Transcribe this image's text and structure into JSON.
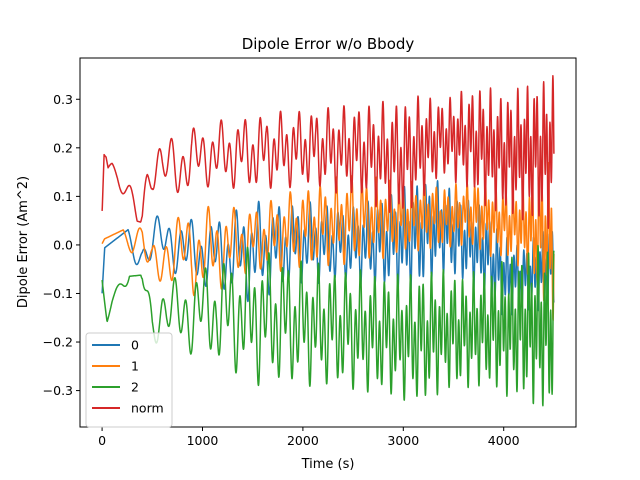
{
  "chart_data": {
    "type": "line",
    "title": "Dipole Error w/o Bbody",
    "xlabel": "Time (s)",
    "ylabel": "Dipole Error (Am^2)",
    "xlim": [
      -220,
      4720
    ],
    "ylim": [
      -0.375,
      0.385
    ],
    "xticks": [
      0,
      1000,
      2000,
      3000,
      4000
    ],
    "xtick_labels": [
      "0",
      "1000",
      "2000",
      "3000",
      "4000"
    ],
    "yticks": [
      -0.3,
      -0.2,
      -0.1,
      0.0,
      0.1,
      0.2,
      0.3
    ],
    "ytick_labels": [
      "−0.3",
      "−0.2",
      "−0.1",
      "0.0",
      "0.1",
      "0.2",
      "0.3"
    ],
    "grid": false,
    "legend_position": "lower left",
    "series": [
      {
        "name": "0",
        "color": "#1f77b4",
        "x": [
          0,
          50,
          100,
          150,
          200,
          300,
          400,
          600,
          800,
          1000,
          1200,
          1500,
          2000,
          2500,
          3000,
          3200,
          3500,
          3800,
          4000,
          4200,
          4500
        ],
        "y": [
          -0.1,
          0.07,
          0.08,
          0.07,
          0.05,
          0.02,
          -0.03,
          0.05,
          0.08,
          -0.05,
          0.05,
          -0.08,
          0.05,
          -0.05,
          0.06,
          0.13,
          -0.05,
          -0.1,
          -0.13,
          -0.12,
          -0.1
        ],
        "envelope": {
          "x": [
            0,
            500,
            1000,
            1500,
            2000,
            2500,
            3000,
            3200,
            3400,
            3600,
            3800,
            4000,
            4200,
            4500
          ],
          "upper": [
            -0.01,
            0.07,
            0.05,
            0.09,
            0.09,
            0.08,
            0.12,
            0.14,
            0.13,
            0.1,
            0.08,
            0.02,
            0.0,
            0.05
          ],
          "lower": [
            -0.1,
            -0.08,
            -0.09,
            -0.12,
            -0.08,
            -0.08,
            -0.1,
            -0.09,
            -0.06,
            -0.08,
            -0.1,
            -0.15,
            -0.14,
            -0.13
          ]
        }
      },
      {
        "name": "1",
        "color": "#ff7f0e",
        "x": [
          0,
          50,
          100,
          200,
          300,
          400,
          500,
          600,
          800,
          1000,
          1200,
          1500,
          2000,
          2500,
          3000,
          3200,
          3500,
          4000,
          4500
        ],
        "y": [
          0.0,
          0.02,
          0.03,
          0.04,
          0.02,
          0.04,
          -0.1,
          -0.02,
          0.05,
          -0.06,
          -0.08,
          0.05,
          0.03,
          0.08,
          0.12,
          0.14,
          0.13,
          0.1,
          0.07
        ],
        "envelope": {
          "x": [
            0,
            500,
            1000,
            1500,
            2000,
            2500,
            3000,
            3200,
            3400,
            3600,
            3800,
            4000,
            4200,
            4500
          ],
          "upper": [
            0.01,
            0.06,
            0.08,
            0.08,
            0.12,
            0.15,
            0.13,
            0.14,
            0.12,
            0.13,
            0.14,
            0.12,
            0.13,
            0.18
          ],
          "lower": [
            -0.01,
            -0.11,
            -0.11,
            -0.06,
            -0.05,
            -0.04,
            -0.02,
            -0.01,
            -0.01,
            0.0,
            -0.02,
            -0.03,
            -0.05,
            -0.16
          ]
        }
      },
      {
        "name": "2",
        "color": "#2ca02c",
        "x": [
          0,
          50,
          100,
          200,
          300,
          400,
          500,
          600,
          800,
          1000,
          1200,
          1500,
          2000,
          2500,
          3000,
          3200,
          3500,
          4000,
          4500
        ],
        "y": [
          -0.07,
          -0.15,
          -0.11,
          -0.06,
          -0.02,
          0.0,
          -0.18,
          -0.12,
          -0.18,
          -0.2,
          -0.05,
          -0.18,
          -0.25,
          -0.28,
          -0.3,
          -0.31,
          -0.28,
          -0.27,
          -0.3
        ],
        "envelope": {
          "x": [
            0,
            500,
            1000,
            1500,
            2000,
            2500,
            3000,
            3200,
            3400,
            3600,
            3800,
            4000,
            4200,
            4500
          ],
          "upper": [
            -0.07,
            -0.06,
            -0.04,
            0.0,
            -0.03,
            -0.05,
            -0.06,
            -0.05,
            -0.05,
            -0.06,
            -0.05,
            -0.03,
            -0.01,
            0.01
          ],
          "lower": [
            -0.15,
            -0.22,
            -0.23,
            -0.29,
            -0.29,
            -0.3,
            -0.32,
            -0.33,
            -0.3,
            -0.3,
            -0.29,
            -0.31,
            -0.32,
            -0.35
          ]
        }
      },
      {
        "name": "norm",
        "color": "#d62728",
        "x": [
          0,
          20,
          40,
          60,
          100,
          150,
          200,
          250,
          300,
          350,
          400,
          450,
          500,
          600,
          700,
          800,
          900,
          1000,
          1200,
          1500,
          2000,
          2500,
          3000,
          3200,
          3500,
          4000,
          4500
        ],
        "y": [
          0.08,
          0.2,
          0.19,
          0.16,
          0.16,
          0.14,
          0.11,
          0.08,
          0.05,
          0.03,
          0.02,
          0.15,
          0.22,
          0.16,
          0.22,
          0.2,
          0.17,
          0.25,
          0.2,
          0.24,
          0.28,
          0.28,
          0.28,
          0.2,
          0.2,
          0.27,
          0.3
        ],
        "envelope": {
          "x": [
            0,
            500,
            1000,
            1500,
            2000,
            2500,
            3000,
            3200,
            3400,
            3600,
            3800,
            4000,
            4200,
            4500
          ],
          "upper": [
            0.2,
            0.22,
            0.25,
            0.27,
            0.28,
            0.29,
            0.3,
            0.31,
            0.3,
            0.32,
            0.33,
            0.31,
            0.33,
            0.35
          ],
          "lower": [
            0.07,
            0.04,
            0.12,
            0.11,
            0.12,
            0.1,
            0.05,
            0.1,
            0.14,
            0.12,
            0.08,
            0.06,
            0.05,
            0.03
          ]
        }
      }
    ]
  }
}
